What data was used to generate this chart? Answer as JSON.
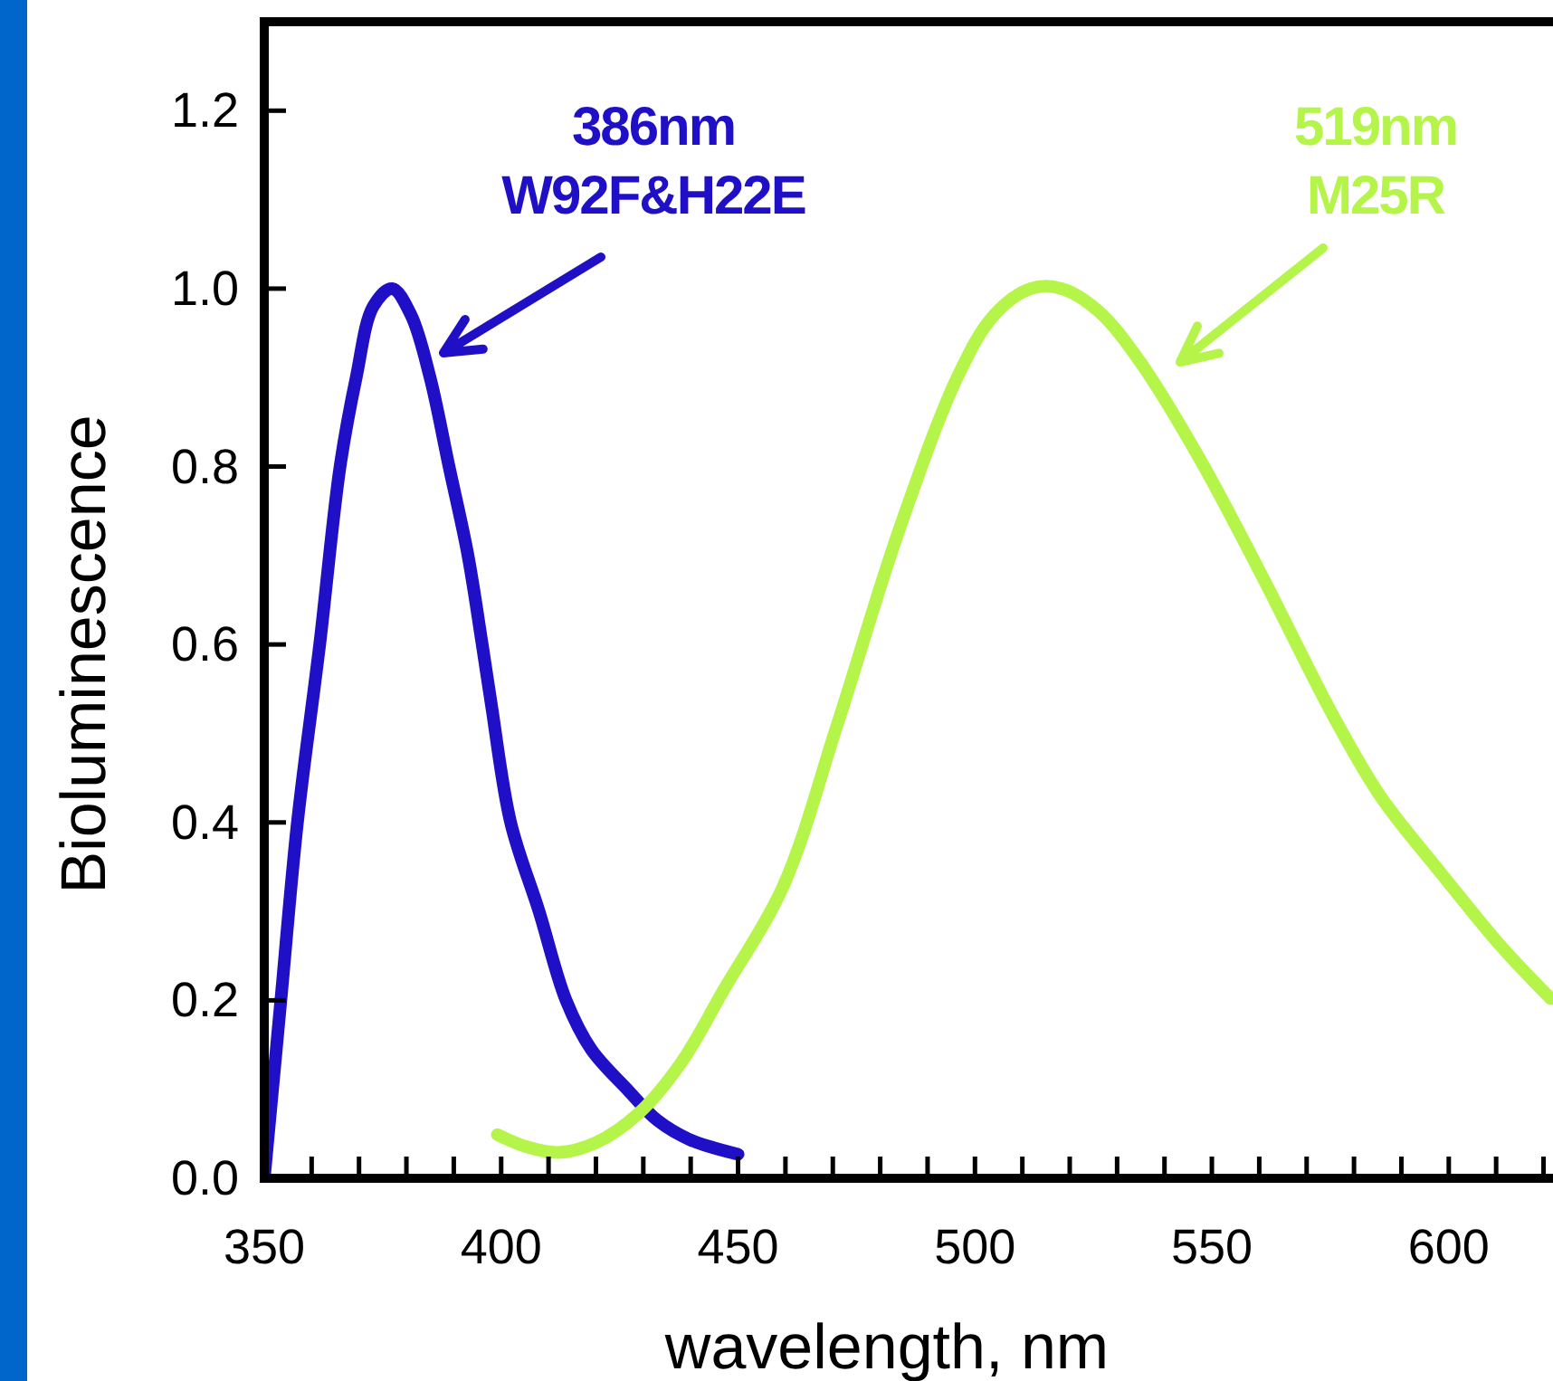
{
  "chart_data": {
    "type": "line",
    "xlabel": "wavelength, nm",
    "ylabel": "Bioluminescence",
    "xlim": [
      350,
      622
    ],
    "ylim": [
      0,
      1.3
    ],
    "xticks": [
      350,
      {
        "value": 360,
        "label": null
      },
      {
        "value": 370,
        "label": null
      },
      {
        "value": 380,
        "label": null
      },
      {
        "value": 390,
        "label": null
      },
      400,
      {
        "value": 410,
        "label": null
      },
      {
        "value": 420,
        "label": null
      },
      {
        "value": 430,
        "label": null
      },
      {
        "value": 440,
        "label": null
      },
      450,
      {
        "value": 460,
        "label": null
      },
      {
        "value": 470,
        "label": null
      },
      {
        "value": 480,
        "label": null
      },
      {
        "value": 490,
        "label": null
      },
      500,
      {
        "value": 510,
        "label": null
      },
      {
        "value": 520,
        "label": null
      },
      {
        "value": 530,
        "label": null
      },
      {
        "value": 540,
        "label": null
      },
      550,
      {
        "value": 560,
        "label": null
      },
      {
        "value": 570,
        "label": null
      },
      {
        "value": 580,
        "label": null
      },
      {
        "value": 590,
        "label": null
      },
      600,
      {
        "value": 610,
        "label": null
      },
      {
        "value": 620,
        "label": null
      }
    ],
    "yticks": [
      {
        "value": 0,
        "label": "0.0"
      },
      0.2,
      0.4,
      0.6,
      0.8,
      {
        "value": 1,
        "label": "1.0"
      },
      1.2
    ],
    "grid": false,
    "marker": "none",
    "line_style": "solid",
    "series": [
      {
        "color": "#1f10c8",
        "x": [
          350,
          353.5,
          357,
          361.7,
          366,
          369.4,
          373,
          377,
          381,
          385,
          389,
          393,
          396,
          398,
          402,
          408,
          413.7,
          419,
          426.6,
          433,
          440,
          450
        ],
        "values": [
          0,
          0.2,
          0.4,
          0.6,
          0.8,
          0.9,
          0.98,
          1.0,
          0.97,
          0.9,
          0.8,
          0.7,
          0.6,
          0.53,
          0.4,
          0.3,
          0.2,
          0.145,
          0.1,
          0.065,
          0.043,
          0.027
        ]
      },
      {
        "color": "#b5f54a",
        "x": [
          399.2,
          405,
          412,
          420,
          429,
          438,
          447,
          459.5,
          471,
          484,
          496.6,
          504,
          511.8,
          518.3,
          526,
          534.7,
          547.3,
          560.3,
          575.6,
          585.5,
          598.5,
          611,
          621.5
        ],
        "values": [
          0.049,
          0.036,
          0.029,
          0.04,
          0.073,
          0.13,
          0.212,
          0.328,
          0.511,
          0.729,
          0.904,
          0.97,
          1.0,
          1.0,
          0.975,
          0.919,
          0.81,
          0.68,
          0.52,
          0.43,
          0.342,
          0.261,
          0.202
        ]
      }
    ],
    "annotations": [
      "386nm\nW92F&H22E",
      "519nm\nM25R"
    ]
  }
}
